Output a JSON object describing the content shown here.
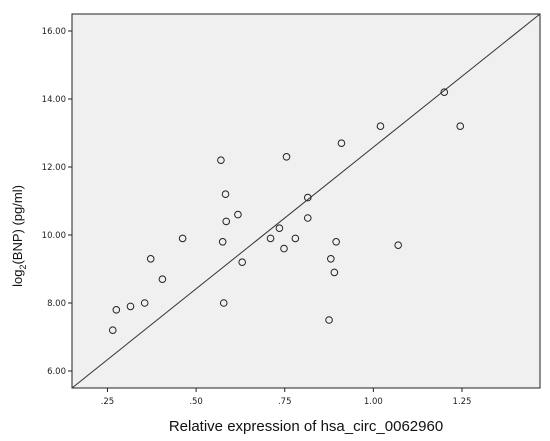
{
  "chart_data": {
    "type": "scatter",
    "xlabel": "Relative expression of  hsa_circ_0062960",
    "ylabel": "log2(BNP) (pg/ml)",
    "ylabel_main": "log",
    "ylabel_sub": "2",
    "ylabel_rest": "(BNP) (pg/ml)",
    "xlim": [
      0.15,
      1.47
    ],
    "ylim": [
      5.5,
      16.5
    ],
    "x_ticks": [
      0.25,
      0.5,
      0.75,
      1.0,
      1.25
    ],
    "x_tick_labels": [
      ".25",
      ".50",
      ".75",
      "1.00",
      "1.25"
    ],
    "y_ticks": [
      6,
      8,
      10,
      12,
      14,
      16
    ],
    "y_tick_labels": [
      "6.00",
      "8.00",
      "10.00",
      "12.00",
      "14.00",
      "16.00"
    ],
    "grid": false,
    "plot_background": "#f0f0f0",
    "point_style": "open-circle",
    "reference_line": {
      "x": [
        0.15,
        1.47
      ],
      "y": [
        5.5,
        16.5
      ]
    },
    "points": [
      {
        "x": 0.265,
        "y": 7.2
      },
      {
        "x": 0.275,
        "y": 7.8
      },
      {
        "x": 0.315,
        "y": 7.9
      },
      {
        "x": 0.355,
        "y": 8.0
      },
      {
        "x": 0.372,
        "y": 9.3
      },
      {
        "x": 0.405,
        "y": 8.7
      },
      {
        "x": 0.462,
        "y": 9.9
      },
      {
        "x": 0.57,
        "y": 12.2
      },
      {
        "x": 0.575,
        "y": 9.8
      },
      {
        "x": 0.578,
        "y": 8.0
      },
      {
        "x": 0.583,
        "y": 11.2
      },
      {
        "x": 0.585,
        "y": 10.4
      },
      {
        "x": 0.618,
        "y": 10.6
      },
      {
        "x": 0.63,
        "y": 9.2
      },
      {
        "x": 0.71,
        "y": 9.9
      },
      {
        "x": 0.735,
        "y": 10.2
      },
      {
        "x": 0.748,
        "y": 9.6
      },
      {
        "x": 0.755,
        "y": 12.3
      },
      {
        "x": 0.78,
        "y": 9.9
      },
      {
        "x": 0.815,
        "y": 11.1
      },
      {
        "x": 0.815,
        "y": 10.5
      },
      {
        "x": 0.875,
        "y": 7.5
      },
      {
        "x": 0.88,
        "y": 9.3
      },
      {
        "x": 0.89,
        "y": 8.9
      },
      {
        "x": 0.895,
        "y": 9.8
      },
      {
        "x": 0.91,
        "y": 12.7
      },
      {
        "x": 1.02,
        "y": 13.2
      },
      {
        "x": 1.07,
        "y": 9.7
      },
      {
        "x": 1.2,
        "y": 14.2
      },
      {
        "x": 1.245,
        "y": 13.2
      }
    ]
  }
}
